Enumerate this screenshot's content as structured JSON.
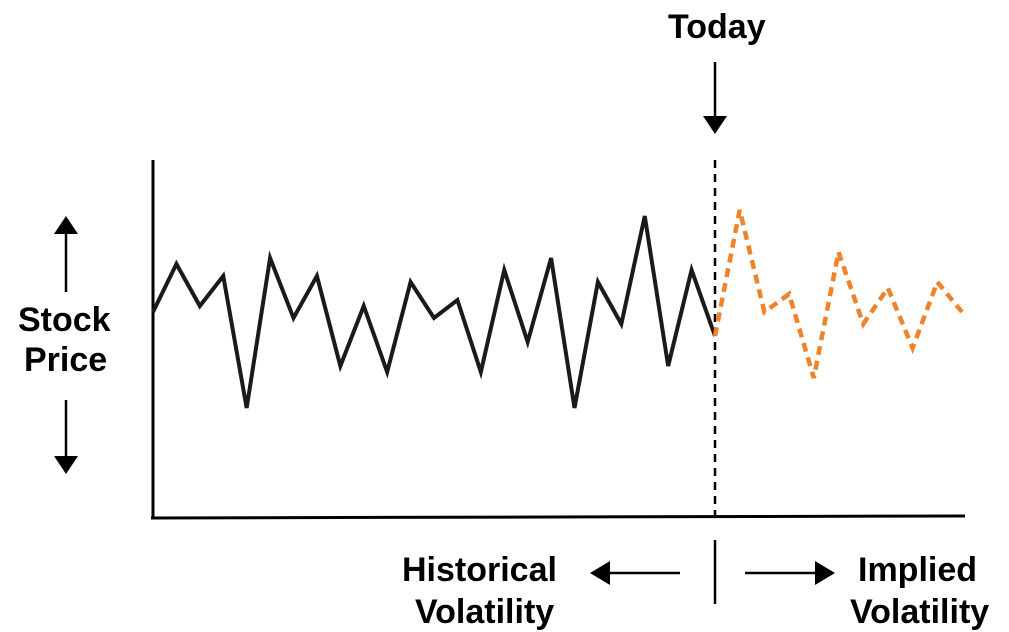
{
  "labels": {
    "today": "Today",
    "y_axis_line1": "Stock",
    "y_axis_line2": "Price",
    "left_region_line1": "Historical",
    "left_region_line2": "Volatility",
    "right_region_line1": "Implied",
    "right_region_line2": "Volatility"
  },
  "colors": {
    "historical_line": "#1a1a1a",
    "implied_line": "#f0822a",
    "axis": "#000000"
  },
  "icons": {
    "today_arrow": "arrow-down-icon",
    "price_up": "arrow-up-icon",
    "price_down": "arrow-down-icon",
    "historical_arrow": "arrow-left-icon",
    "implied_arrow": "arrow-right-icon"
  },
  "series": {
    "historical": {
      "style": "solid",
      "values": [
        0.3,
        1.1,
        0.4,
        0.9,
        -1.3,
        1.2,
        0.2,
        0.9,
        -0.6,
        0.4,
        -0.7,
        0.8,
        0.2,
        0.5,
        -0.7,
        1.0,
        -0.2,
        1.2,
        -1.3,
        0.8,
        0.1,
        1.9,
        -0.6,
        1.0,
        -0.1
      ]
    },
    "implied": {
      "style": "dashed",
      "values": [
        -0.1,
        2.0,
        0.3,
        0.6,
        -0.8,
        1.3,
        0.1,
        0.7,
        -0.3,
        0.8,
        0.3
      ]
    }
  }
}
